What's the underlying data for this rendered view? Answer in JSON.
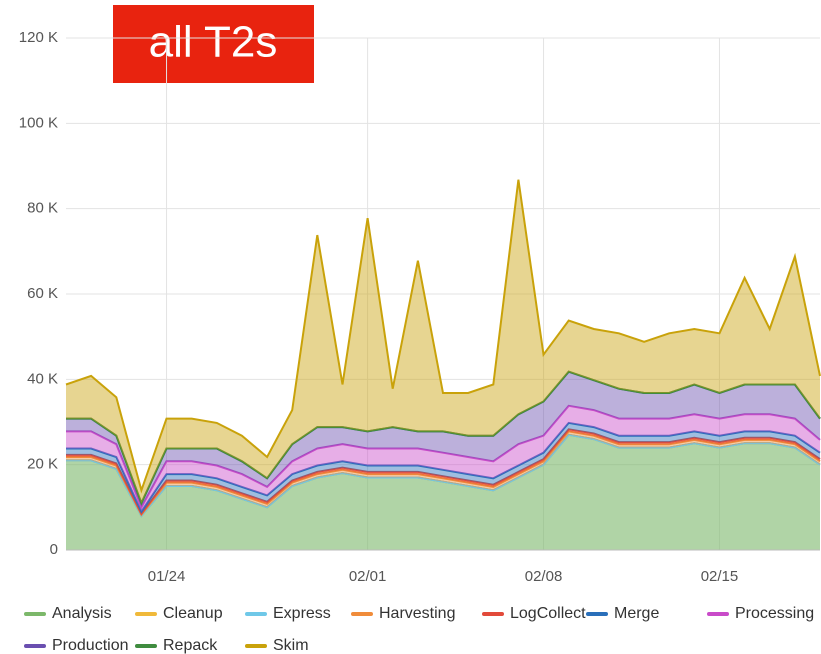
{
  "chart_data": {
    "type": "stacked-area",
    "annotation": "all T2s",
    "x": [
      "01/20",
      "01/21",
      "01/22",
      "01/23",
      "01/24",
      "01/25",
      "01/26",
      "01/27",
      "01/28",
      "01/29",
      "01/30",
      "01/31",
      "02/01",
      "02/02",
      "02/03",
      "02/04",
      "02/05",
      "02/06",
      "02/07",
      "02/08",
      "02/09",
      "02/10",
      "02/11",
      "02/12",
      "02/13",
      "02/14",
      "02/15",
      "02/16",
      "02/17",
      "02/18",
      "02/19"
    ],
    "xlim": [
      "01/20",
      "02/19"
    ],
    "xticks": [
      "01/24",
      "02/01",
      "02/08",
      "02/15"
    ],
    "ylim": [
      0,
      120000
    ],
    "yticks": [
      0,
      {
        "value": 20000,
        "label": "20 K"
      },
      {
        "value": 40000,
        "label": "40 K"
      },
      {
        "value": 60000,
        "label": "60 K"
      },
      {
        "value": 80000,
        "label": "80 K"
      },
      {
        "value": 100000,
        "label": "100 K"
      },
      {
        "value": 120000,
        "label": "120 K"
      }
    ],
    "grid": true,
    "legend": "bottom",
    "series": [
      {
        "name": "Analysis",
        "color": "#7cb86a",
        "values": [
          21000,
          21000,
          19000,
          8000,
          15000,
          15000,
          14000,
          12000,
          10000,
          15000,
          17000,
          18000,
          17000,
          17000,
          17000,
          16000,
          15000,
          14000,
          17000,
          20000,
          27000,
          26000,
          24000,
          24000,
          24000,
          25000,
          24000,
          25000,
          25000,
          24000,
          20000
        ]
      },
      {
        "name": "Cleanup",
        "color": "#f0b93a",
        "values": [
          0,
          0,
          0,
          0,
          0,
          0,
          0,
          0,
          0,
          0,
          0,
          0,
          0,
          0,
          0,
          0,
          0,
          0,
          0,
          0,
          0,
          0,
          0,
          0,
          0,
          0,
          0,
          0,
          0,
          0,
          0
        ]
      },
      {
        "name": "Express",
        "color": "#6fc8e8",
        "values": [
          0,
          0,
          0,
          0,
          0,
          0,
          0,
          0,
          0,
          0,
          0,
          0,
          0,
          0,
          0,
          0,
          0,
          0,
          0,
          0,
          0,
          0,
          0,
          0,
          0,
          0,
          0,
          0,
          0,
          0,
          0
        ]
      },
      {
        "name": "Harvesting",
        "color": "#f08c3a",
        "values": [
          800,
          800,
          800,
          300,
          800,
          800,
          800,
          800,
          800,
          800,
          800,
          800,
          800,
          800,
          800,
          800,
          800,
          800,
          800,
          800,
          800,
          800,
          800,
          800,
          800,
          800,
          800,
          800,
          800,
          800,
          800
        ]
      },
      {
        "name": "LogCollect",
        "color": "#e24a3a",
        "values": [
          500,
          500,
          500,
          200,
          500,
          500,
          500,
          500,
          500,
          500,
          500,
          500,
          500,
          500,
          500,
          500,
          500,
          500,
          500,
          500,
          500,
          500,
          500,
          500,
          500,
          500,
          500,
          500,
          500,
          500,
          500
        ]
      },
      {
        "name": "Merge",
        "color": "#2a6fba",
        "values": [
          1500,
          1500,
          1500,
          500,
          1500,
          1500,
          1500,
          1500,
          1500,
          1500,
          1500,
          1500,
          1500,
          1500,
          1500,
          1500,
          1500,
          1500,
          1500,
          1500,
          1500,
          1500,
          1500,
          1500,
          1500,
          1500,
          1500,
          1500,
          1500,
          1500,
          1500
        ]
      },
      {
        "name": "Processing",
        "color": "#c94bc9",
        "values": [
          4000,
          4000,
          3000,
          1000,
          3000,
          3000,
          3000,
          3000,
          2000,
          3000,
          4000,
          4000,
          4000,
          4000,
          4000,
          4000,
          4000,
          4000,
          5000,
          4000,
          4000,
          4000,
          4000,
          4000,
          4000,
          4000,
          4000,
          4000,
          4000,
          4000,
          3000
        ]
      },
      {
        "name": "Production",
        "color": "#6a4fb0",
        "values": [
          3000,
          3000,
          2000,
          1000,
          3000,
          3000,
          4000,
          3000,
          2000,
          4000,
          5000,
          4000,
          4000,
          5000,
          4000,
          5000,
          5000,
          6000,
          7000,
          8000,
          8000,
          7000,
          7000,
          6000,
          6000,
          7000,
          6000,
          7000,
          7000,
          8000,
          5000
        ]
      },
      {
        "name": "Repack",
        "color": "#3f8c3f",
        "values": [
          0,
          0,
          0,
          0,
          0,
          0,
          0,
          0,
          0,
          0,
          0,
          0,
          0,
          0,
          0,
          0,
          0,
          0,
          0,
          0,
          0,
          0,
          0,
          0,
          0,
          0,
          0,
          0,
          0,
          0,
          0
        ]
      },
      {
        "name": "Skim",
        "color": "#c9a20a",
        "values": [
          8000,
          10000,
          9000,
          3000,
          7000,
          7000,
          6000,
          6000,
          5000,
          8000,
          45000,
          10000,
          50000,
          9000,
          40000,
          9000,
          10000,
          12000,
          55000,
          11000,
          12000,
          12000,
          13000,
          12000,
          14000,
          13000,
          14000,
          25000,
          13000,
          30000,
          10000
        ]
      }
    ]
  }
}
